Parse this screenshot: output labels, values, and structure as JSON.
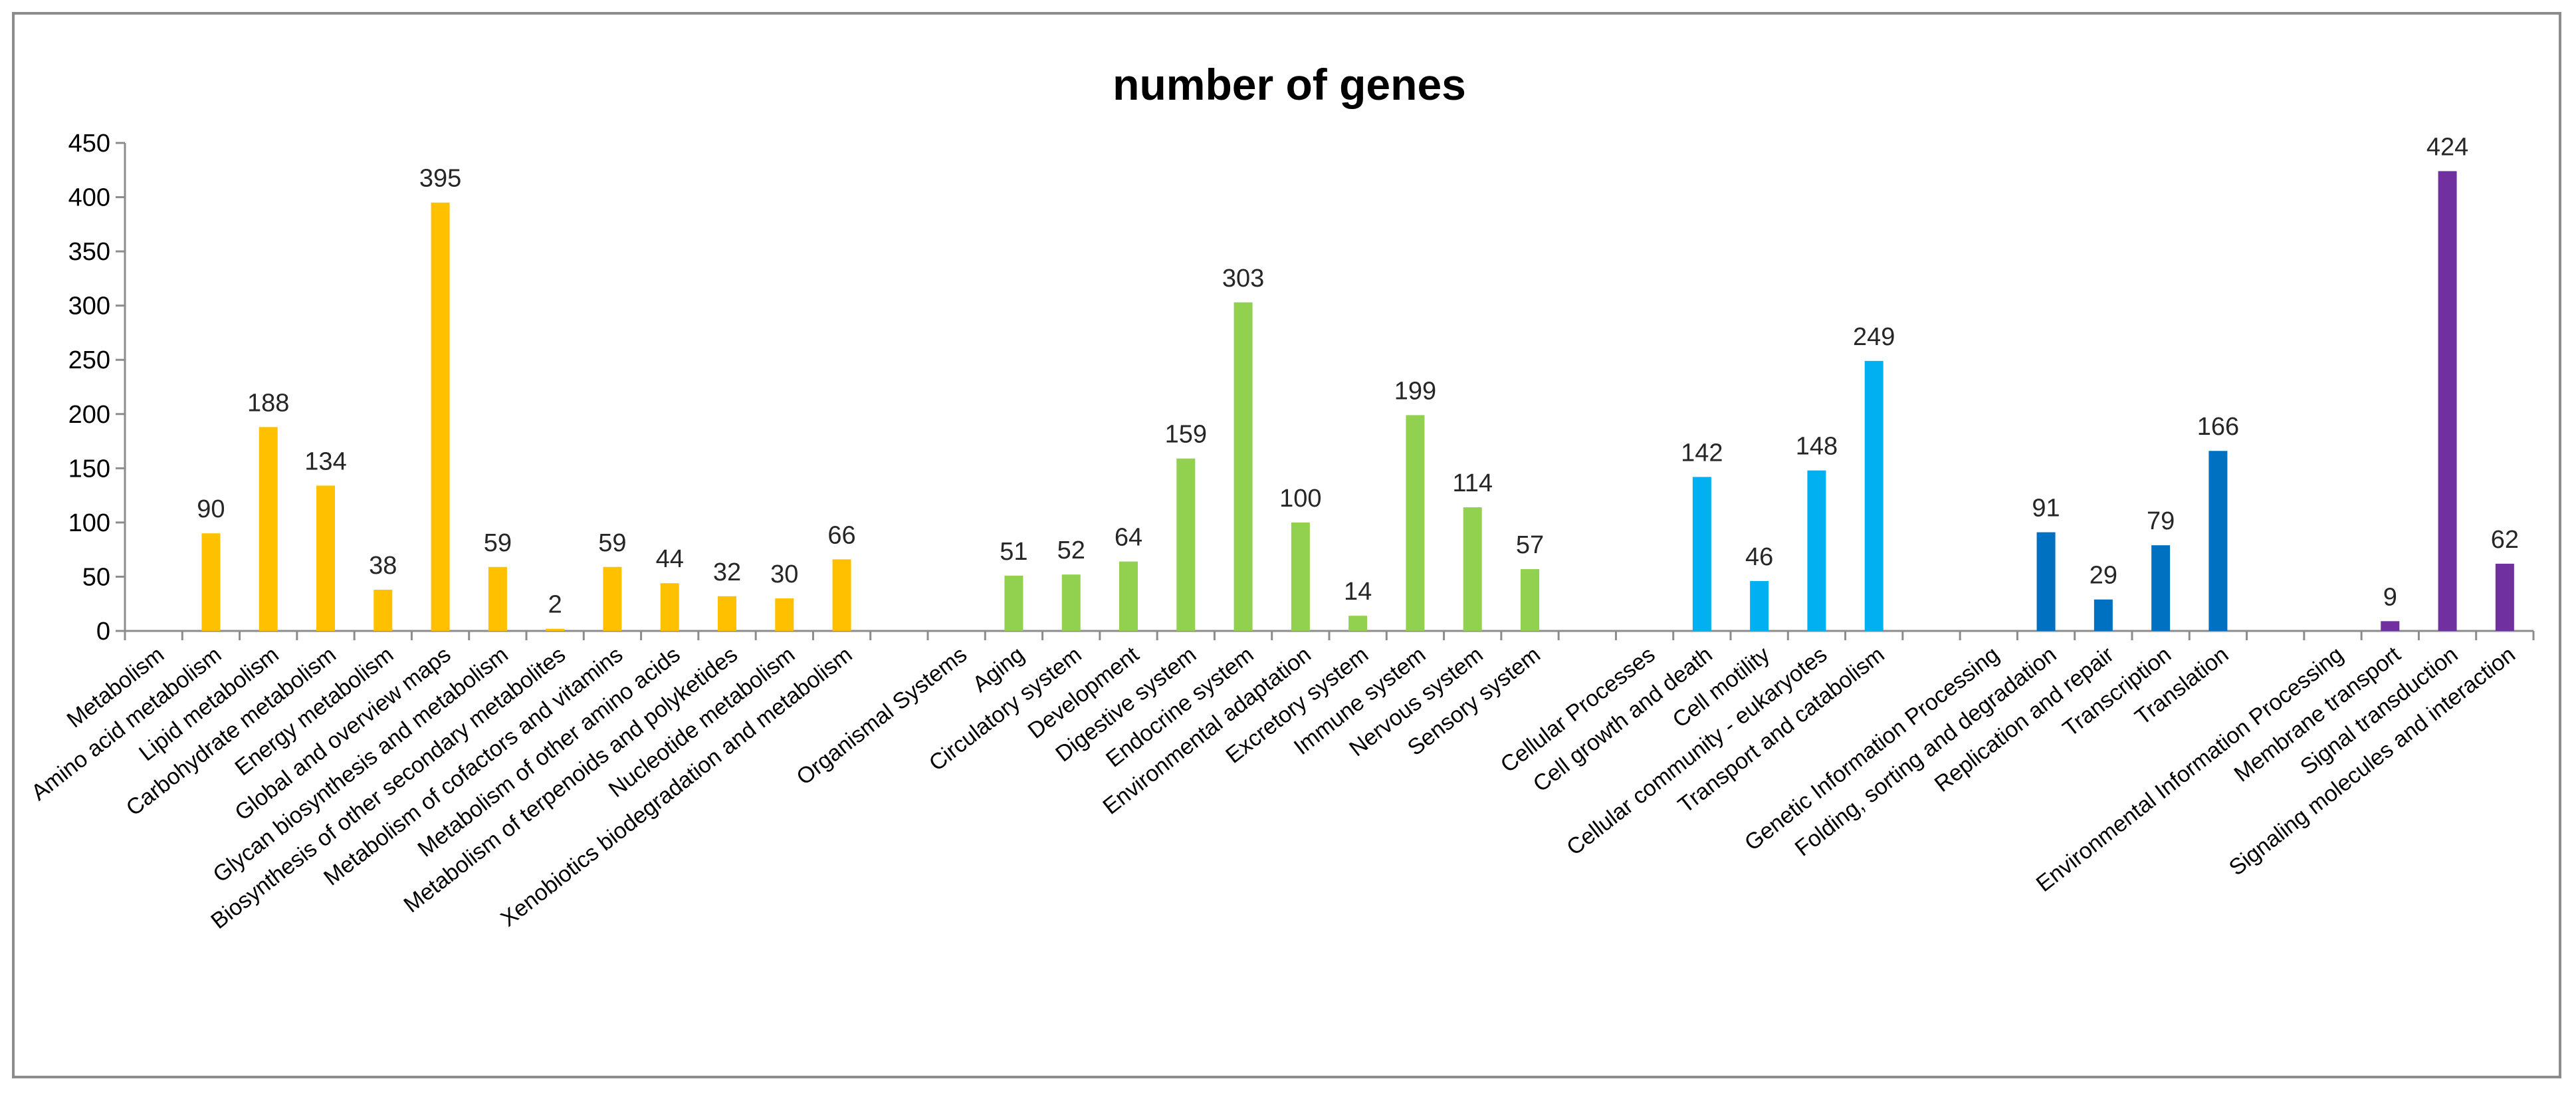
{
  "chart_data": {
    "type": "bar",
    "title": "number of genes",
    "xlabel": "",
    "ylabel": "",
    "ylim": [
      0,
      450
    ],
    "yticks": [
      0,
      50,
      100,
      150,
      200,
      250,
      300,
      350,
      400,
      450
    ],
    "grid": false,
    "legend": "none",
    "categories": [
      "Metabolism",
      "Amino acid metabolism",
      "Lipid metabolism",
      "Carbohydrate metabolism",
      "Energy metabolism",
      "Global and overview maps",
      "Glycan biosynthesis and metabolism",
      "Biosynthesis of other secondary metabolites",
      "Metabolism of cofactors and vitamins",
      "Metabolism of other amino acids",
      "Metabolism of terpenoids and polyketides",
      "Nucleotide metabolism",
      "Xenobiotics biodegradation and metabolism",
      "",
      "Organismal Systems",
      "Aging",
      "Circulatory system",
      "Development",
      "Digestive system",
      "Endocrine system",
      "Environmental adaptation",
      "Excretory system",
      "Immune system",
      "Nervous system",
      "Sensory system",
      "",
      "Cellular Processes",
      "Cell growth and death",
      "Cell motility",
      "Cellular community - eukaryotes",
      "Transport and catabolism",
      "",
      "Genetic Information Processing",
      "Folding, sorting and degradation",
      "Replication and repair",
      "Transcription",
      "Translation",
      "",
      "Environmental Information Processing",
      "Membrane transport",
      "Signal transduction",
      "Signaling molecules and interaction"
    ],
    "values": [
      null,
      90,
      188,
      134,
      38,
      395,
      59,
      2,
      59,
      44,
      32,
      30,
      66,
      null,
      null,
      51,
      52,
      64,
      159,
      303,
      100,
      14,
      199,
      114,
      57,
      null,
      null,
      142,
      46,
      148,
      249,
      null,
      null,
      91,
      29,
      79,
      166,
      null,
      null,
      9,
      424,
      62
    ],
    "colors": [
      "#ffc000",
      "#ffc000",
      "#ffc000",
      "#ffc000",
      "#ffc000",
      "#ffc000",
      "#ffc000",
      "#ffc000",
      "#ffc000",
      "#ffc000",
      "#ffc000",
      "#ffc000",
      "#ffc000",
      "#ffc000",
      "#92d050",
      "#92d050",
      "#92d050",
      "#92d050",
      "#92d050",
      "#92d050",
      "#92d050",
      "#92d050",
      "#92d050",
      "#92d050",
      "#92d050",
      "#92d050",
      "#00b0f0",
      "#00b0f0",
      "#00b0f0",
      "#00b0f0",
      "#00b0f0",
      "#00b0f0",
      "#0070c0",
      "#0070c0",
      "#0070c0",
      "#0070c0",
      "#0070c0",
      "#0070c0",
      "#7030a0",
      "#7030a0",
      "#7030a0",
      "#7030a0"
    ]
  }
}
